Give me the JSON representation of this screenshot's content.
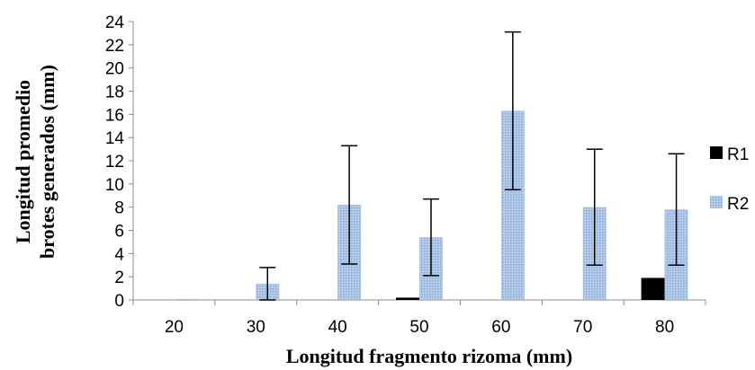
{
  "chart_data": {
    "type": "bar",
    "xlabel": "Longitud fragmento rizoma (mm)",
    "ylabel_lines": [
      "Longitud promedio",
      "brotes generados (mm)"
    ],
    "categories": [
      "20",
      "30",
      "40",
      "50",
      "60",
      "70",
      "80"
    ],
    "ylim": [
      0,
      24
    ],
    "yticks": [
      0,
      2,
      4,
      6,
      8,
      10,
      12,
      14,
      16,
      18,
      20,
      22,
      24
    ],
    "grid": false,
    "legend_position": "right",
    "series": [
      {
        "name": "R1",
        "color": "#000000",
        "pattern": "solid",
        "values": [
          0,
          0,
          0,
          0.2,
          0,
          0,
          1.9
        ],
        "error": [
          0,
          0,
          0,
          0,
          0,
          0,
          0
        ]
      },
      {
        "name": "R2",
        "color": "#a9c4e6",
        "pattern": "dotted",
        "values": [
          0.05,
          1.4,
          8.2,
          5.4,
          16.3,
          8.0,
          7.8
        ],
        "error": [
          0,
          1.4,
          5.1,
          3.3,
          6.8,
          5.0,
          4.8
        ]
      }
    ]
  }
}
